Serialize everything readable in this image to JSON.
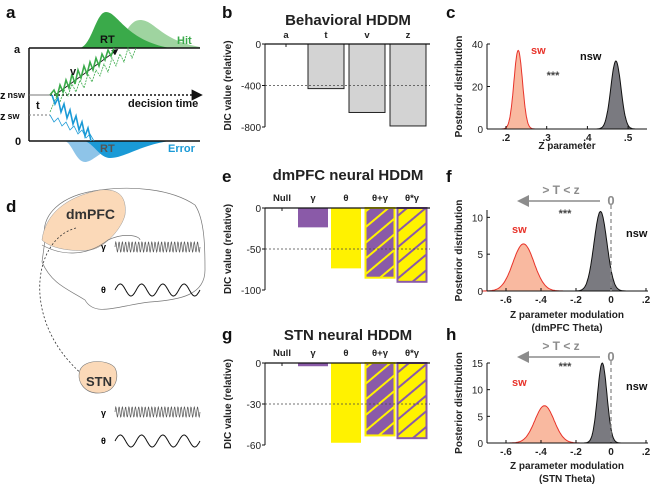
{
  "panel_labels": {
    "a": "a",
    "b": "b",
    "c": "c",
    "d": "d",
    "e": "e",
    "f": "f",
    "g": "g",
    "h": "h"
  },
  "colors": {
    "green": "#3aaa4a",
    "green_light": "#9fd4a0",
    "blue": "#1a9ad6",
    "blue_light": "#8ec4e8",
    "gray_bar": "#d3d3d3",
    "purple": "#8a5aa8",
    "yellow": "#fff200",
    "sw_fill": "#f9b9a0",
    "sw_line": "#e8332a",
    "nsw_fill": "#7a7a80",
    "brain_region": "#fbd9b8",
    "annot_gray": "#8c8c8c"
  },
  "panel_a": {
    "bound_a": "a",
    "bound_0": "0",
    "z_nsw": "z",
    "z_nsw_sub": "nsw",
    "z_sw": "z",
    "z_sw_sub": "sw",
    "t": "t",
    "v": "v",
    "decision_time": "decision time",
    "rt_top": "RT",
    "rt_bottom": "RT",
    "hit": "Hit",
    "error": "Error"
  },
  "panel_d": {
    "dmpfc": "dmPFC",
    "stn": "STN",
    "gamma": "γ",
    "theta": "θ"
  },
  "chart_data": [
    {
      "id": "b",
      "type": "bar",
      "title": "Behavioral HDDM",
      "categories": [
        "a",
        "t",
        "v",
        "z"
      ],
      "values": [
        0,
        -430,
        -660,
        -790
      ],
      "styles": [
        "gray",
        "gray",
        "gray",
        "gray"
      ],
      "ylabel": "DIC value (relative)",
      "yticks": [
        0,
        -400,
        -800
      ],
      "ytick_labels": [
        "0",
        "-400",
        "-800"
      ],
      "ylim": [
        -800,
        0
      ],
      "reference_line": -400
    },
    {
      "id": "e",
      "type": "bar",
      "title": "dmPFC neural HDDM",
      "categories": [
        "Null",
        "γ",
        "θ",
        "θ+γ",
        "θ*γ"
      ],
      "values": [
        0,
        -23,
        -73,
        -85,
        -90
      ],
      "styles": [
        "none",
        "purple",
        "yellow",
        "purple-hatch",
        "yellow-hatch"
      ],
      "ylabel": "DIC value (relative)",
      "yticks": [
        0,
        -50,
        -100
      ],
      "ytick_labels": [
        "0",
        "-50",
        "-100"
      ],
      "ylim": [
        -100,
        0
      ],
      "reference_line": -50
    },
    {
      "id": "g",
      "type": "bar",
      "title": "STN neural HDDM",
      "categories": [
        "Null",
        "γ",
        "θ",
        "θ+γ",
        "θ*γ"
      ],
      "values": [
        0,
        -2,
        -58,
        -53,
        -55
      ],
      "styles": [
        "none",
        "purple",
        "yellow",
        "purple-hatch",
        "yellow-hatch"
      ],
      "ylabel": "DIC value (relative)",
      "yticks": [
        0,
        -30,
        -60
      ],
      "ytick_labels": [
        "0",
        "-30",
        "-60"
      ],
      "ylim": [
        -60,
        0
      ],
      "reference_line": -30
    },
    {
      "id": "c",
      "type": "area",
      "xlabel": "Z parameter",
      "xlabel2": "",
      "ylabel": "Posterior distribution",
      "xticks": [
        0.2,
        0.3,
        0.4,
        0.5
      ],
      "xtick_labels": [
        ".2",
        ".3",
        ".4",
        ".5"
      ],
      "yticks": [
        0,
        20,
        40
      ],
      "ytick_labels": [
        "0",
        "20",
        "40"
      ],
      "xlim": [
        0.16,
        0.55
      ],
      "ylim": [
        0,
        40
      ],
      "significance": "***",
      "series": [
        {
          "name": "sw",
          "mean": 0.23,
          "sd": 0.0105,
          "peak": 37
        },
        {
          "name": "nsw",
          "mean": 0.47,
          "sd": 0.0125,
          "peak": 32
        }
      ]
    },
    {
      "id": "f",
      "type": "area",
      "xlabel": "Z parameter modulation",
      "xlabel2": "(dmPFC Theta)",
      "ylabel": "Posterior distribution",
      "xticks": [
        -0.6,
        -0.4,
        -0.2,
        0,
        0.2
      ],
      "xtick_labels": [
        "-.6",
        "-.4",
        "-.2",
        "0",
        ".2"
      ],
      "yticks": [
        0,
        5,
        10
      ],
      "ytick_labels": [
        "0",
        "5",
        "10"
      ],
      "xlim": [
        -0.7,
        0.21
      ],
      "ylim": [
        0,
        11
      ],
      "significance": "***",
      "annotation": "> T  < z",
      "zero_label": "0",
      "series": [
        {
          "name": "sw",
          "mean": -0.5,
          "sd": 0.06,
          "peak": 6.4
        },
        {
          "name": "nsw",
          "mean": -0.06,
          "sd": 0.037,
          "peak": 10.8
        }
      ]
    },
    {
      "id": "h",
      "type": "area",
      "xlabel": "Z parameter modulation",
      "xlabel2": "(STN Theta)",
      "ylabel": "Posterior distribution",
      "xticks": [
        -0.6,
        -0.4,
        -0.2,
        0,
        0.2
      ],
      "xtick_labels": [
        "-.6",
        "-.4",
        "-.2",
        "0",
        ".2"
      ],
      "yticks": [
        0,
        5,
        10,
        15
      ],
      "ytick_labels": [
        "0",
        "5",
        "10",
        "15"
      ],
      "xlim": [
        -0.7,
        0.21
      ],
      "ylim": [
        0,
        15
      ],
      "significance": "***",
      "annotation": "> T  < z",
      "zero_label": "0",
      "series": [
        {
          "name": "sw",
          "mean": -0.38,
          "sd": 0.055,
          "peak": 7.0
        },
        {
          "name": "nsw",
          "mean": -0.05,
          "sd": 0.027,
          "peak": 15
        }
      ]
    }
  ]
}
